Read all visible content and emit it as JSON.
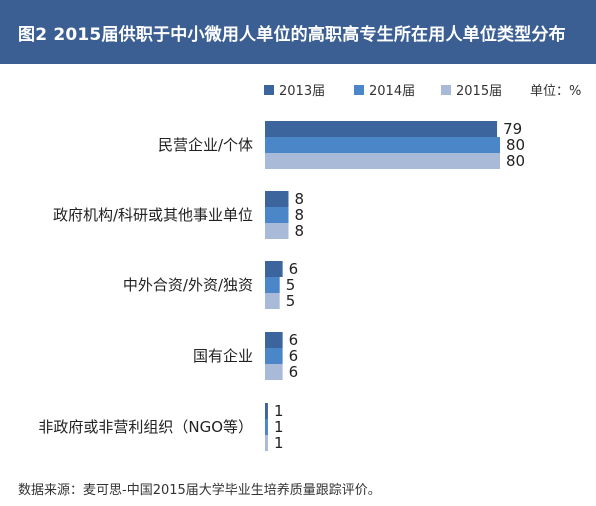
{
  "colors": {
    "header_bg": "#3b5f93",
    "series": [
      "#3c659e",
      "#4a86c8",
      "#a9bad9"
    ]
  },
  "chart_data": {
    "type": "bar",
    "orientation": "horizontal",
    "title": "图2 2015届供职于中小微用人单位的高职高专生所在用人单位类型分布",
    "unit_label": "单位：%",
    "legend_position": "top-right",
    "categories": [
      "民营企业/个体",
      "政府机构/科研或其他事业单位",
      "中外合资/外资/独资",
      "国有企业",
      "非政府或非营利组织（NGO等）"
    ],
    "series": [
      {
        "name": "2013届",
        "values": [
          79,
          8,
          6,
          6,
          1
        ]
      },
      {
        "name": "2014届",
        "values": [
          80,
          8,
          5,
          6,
          1
        ]
      },
      {
        "name": "2015届",
        "values": [
          80,
          8,
          5,
          6,
          1
        ]
      }
    ],
    "xlim": [
      0,
      80
    ],
    "grid": false
  },
  "footer": {
    "source": "数据来源：麦可思-中国2015届大学毕业生培养质量跟踪评价。"
  }
}
